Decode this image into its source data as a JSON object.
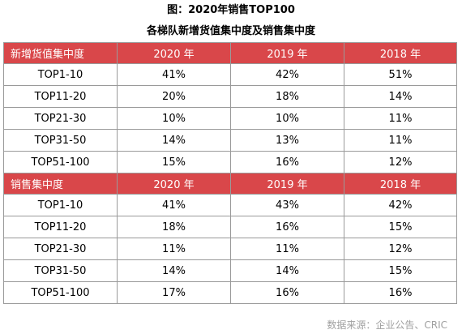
{
  "figure_title": "图：2020年销售TOP100",
  "table_title": "各梯队新增货值集中度及销售集中度",
  "colors": {
    "header_bg": "#d9474a",
    "header_text": "#ffffff",
    "border": "#9a9a9a",
    "source_text": "#a0a0a0"
  },
  "sections": [
    {
      "header": [
        "新增货值集中度",
        "2020 年",
        "2019 年",
        "2018 年"
      ],
      "rows": [
        [
          "TOP1-10",
          "41%",
          "42%",
          "51%"
        ],
        [
          "TOP11-20",
          "20%",
          "18%",
          "14%"
        ],
        [
          "TOP21-30",
          "10%",
          "10%",
          "11%"
        ],
        [
          "TOP31-50",
          "14%",
          "13%",
          "11%"
        ],
        [
          "TOP51-100",
          "15%",
          "16%",
          "12%"
        ]
      ]
    },
    {
      "header": [
        "销售集中度",
        "2020 年",
        "2019 年",
        "2018 年"
      ],
      "rows": [
        [
          "TOP1-10",
          "41%",
          "43%",
          "42%"
        ],
        [
          "TOP11-20",
          "18%",
          "16%",
          "15%"
        ],
        [
          "TOP21-30",
          "11%",
          "11%",
          "12%"
        ],
        [
          "TOP31-50",
          "14%",
          "14%",
          "15%"
        ],
        [
          "TOP51-100",
          "17%",
          "16%",
          "16%"
        ]
      ]
    }
  ],
  "source": "数据来源：企业公告、CRIC"
}
